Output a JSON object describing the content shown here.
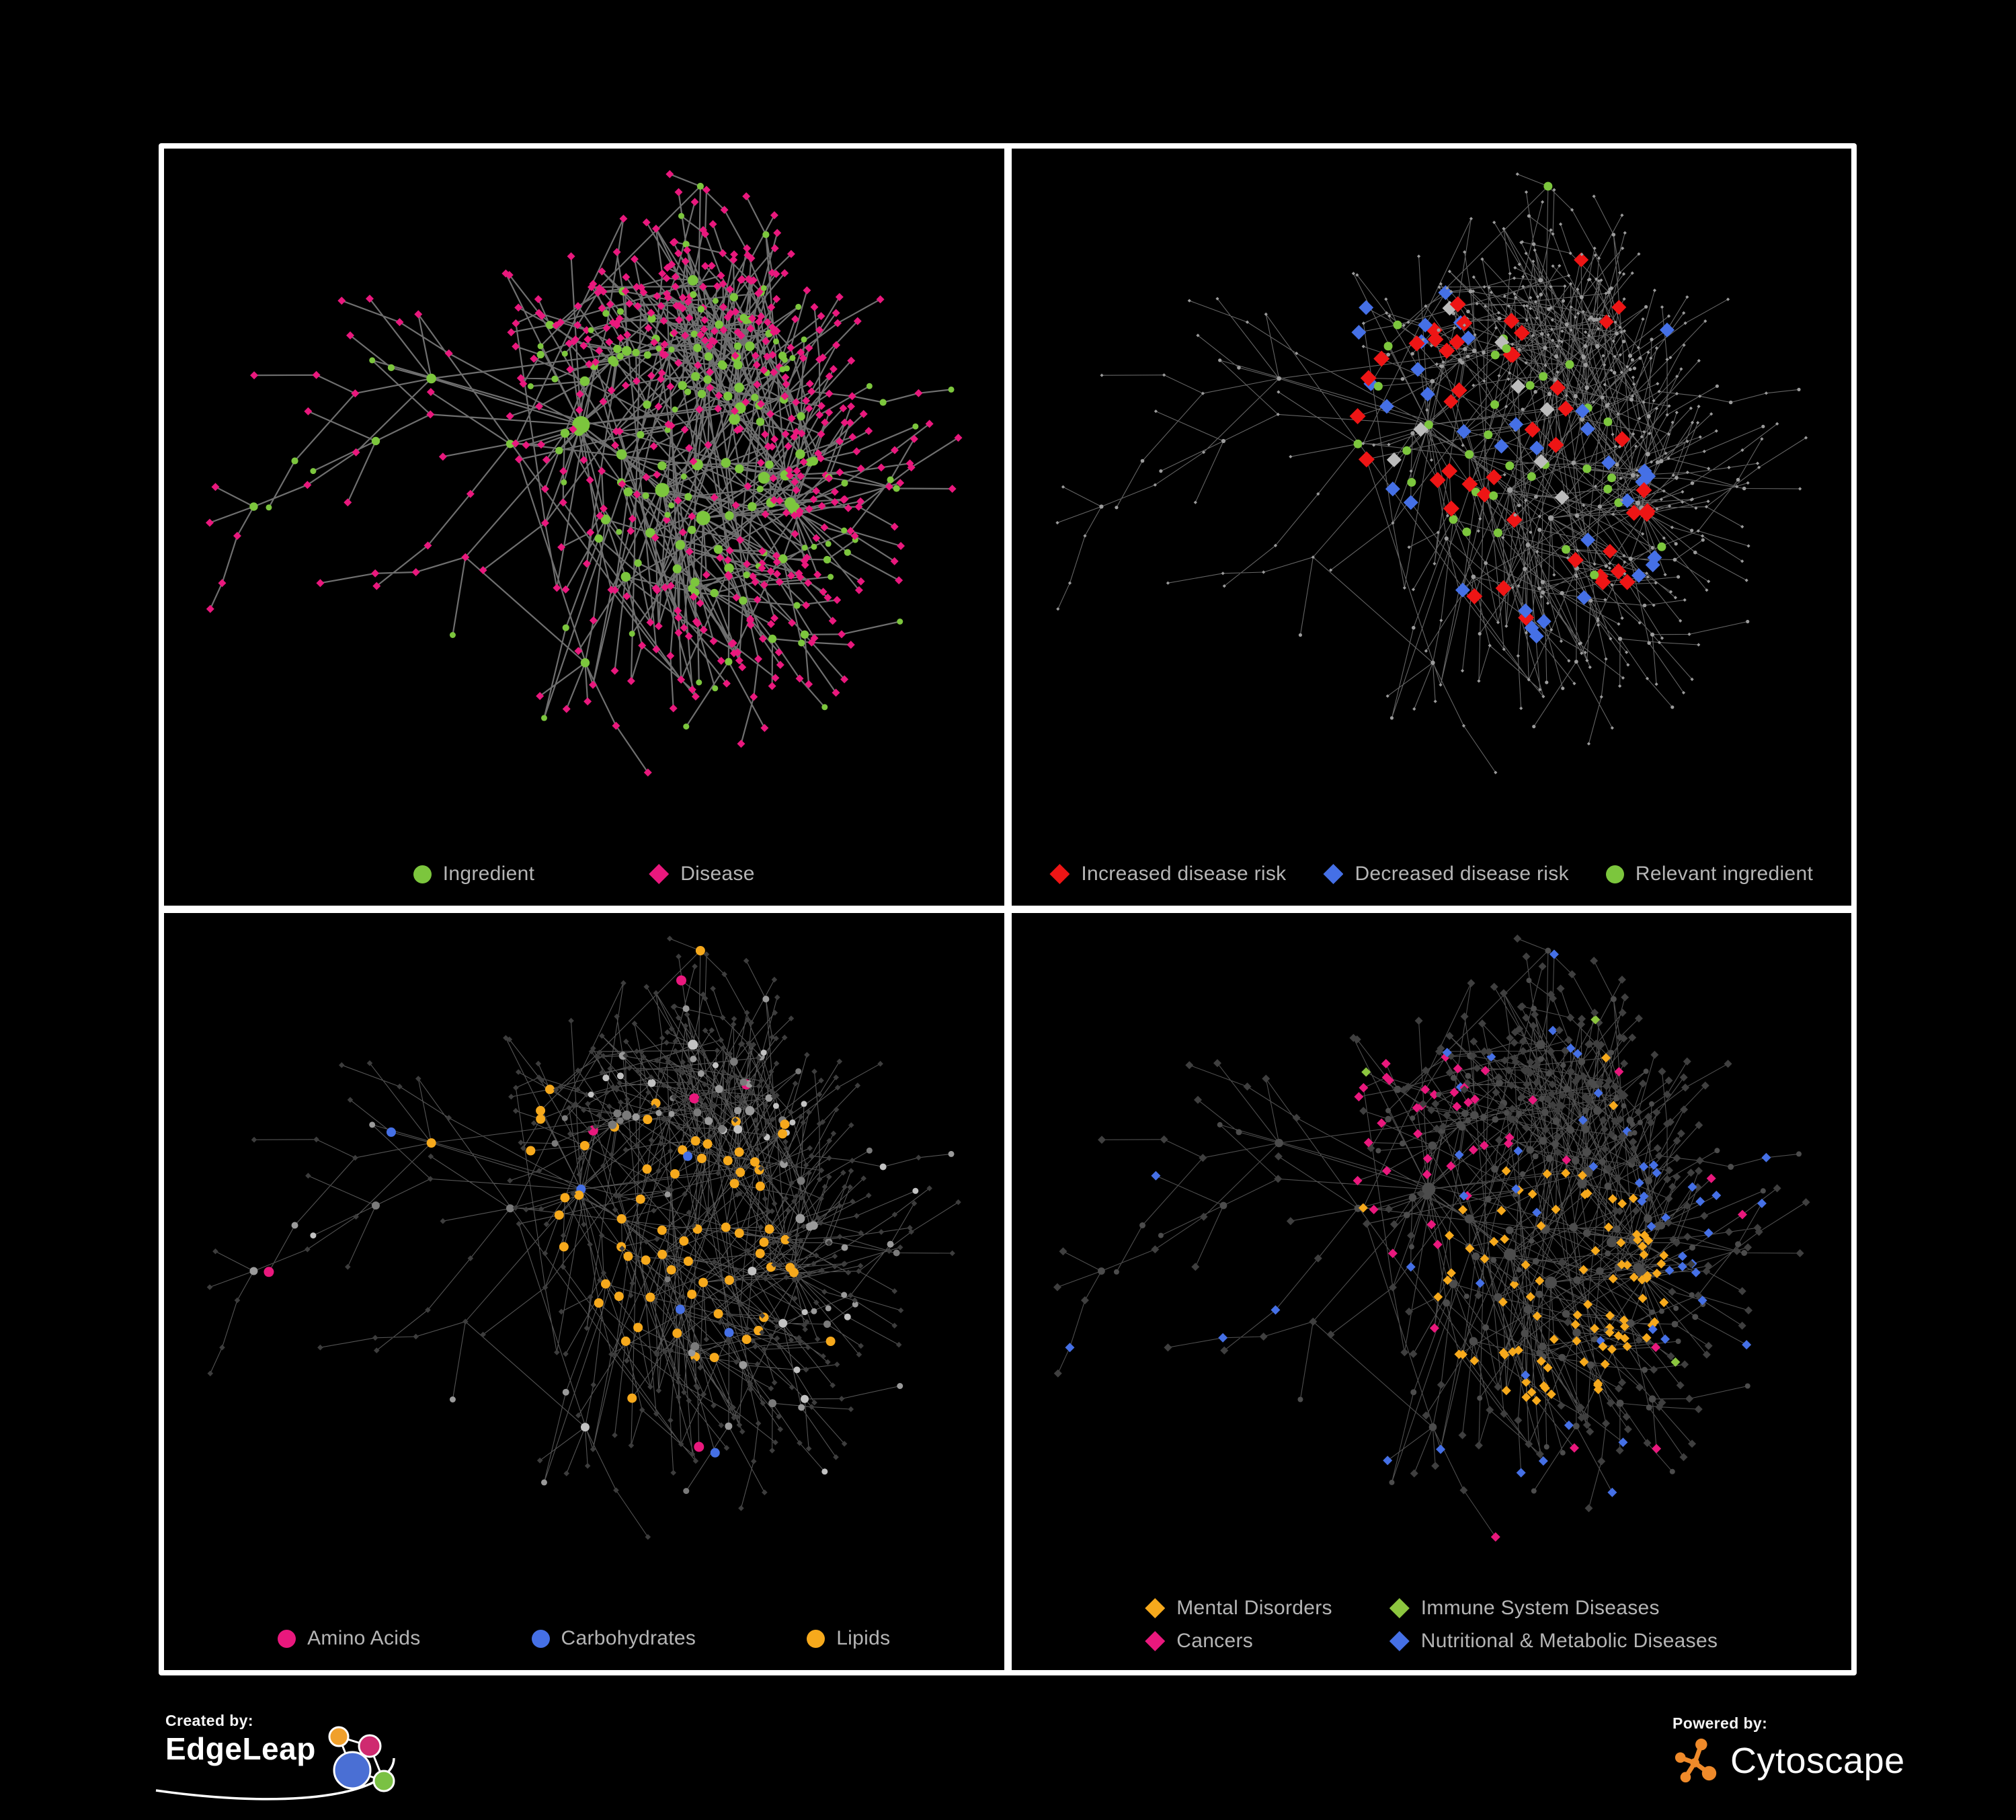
{
  "page": {
    "background": "#000000",
    "frame_color": "#ffffff",
    "legend_text_color": "#b5b5b5"
  },
  "network": {
    "seed": 7,
    "node_count": 640,
    "hub_bias": 1.45,
    "max_children": 28,
    "extra_edges": 85
  },
  "panels": [
    {
      "name": "ingredient-disease",
      "seed": 101,
      "legend": {
        "layout": "row",
        "items": [
          {
            "shape": "circle",
            "color": "#7cc63d",
            "label": "Ingredient"
          },
          {
            "shape": "diamond",
            "color": "#e9187d",
            "label": "Disease"
          }
        ]
      },
      "style": {
        "edge": {
          "color": "#757575",
          "width": 2.2,
          "opacity": 0.95
        },
        "ingredient": {
          "shape": "circle",
          "color": "#7cc63d",
          "r0": 4.5,
          "rk": 0.55,
          "rmax": 8.5
        },
        "disease": {
          "shape": "diamond",
          "color": "#e9187d",
          "s": 6
        }
      },
      "highlight_rules": []
    },
    {
      "name": "disease-risk",
      "seed": 202,
      "legend": {
        "layout": "row",
        "items": [
          {
            "shape": "diamond",
            "color": "#ee1515",
            "label": "Increased disease risk"
          },
          {
            "shape": "diamond",
            "color": "#4570e6",
            "label": "Decreased disease risk"
          },
          {
            "shape": "circle",
            "color": "#7cc63d",
            "label": "Relevant ingredient"
          }
        ]
      },
      "style": {
        "edge": {
          "color": "#8f8f8f",
          "width": 1.1,
          "opacity": 0.7
        },
        "ingredient": {
          "shape": "circle",
          "color": "#9c9c9c",
          "r0": 2.6,
          "rk": 0.15,
          "rmax": 2.4
        },
        "disease": {
          "shape": "diamond",
          "color": "#9c9c9c",
          "s": 2.6
        }
      },
      "highlight_rules": [
        {
          "target": "disease",
          "anchor": "hub0",
          "radius": 200,
          "prob": 0.3,
          "shape": "diamond",
          "color": "#ee1515",
          "size": 12
        },
        {
          "target": "disease",
          "anchor": "hub0",
          "radius": 200,
          "prob": 0.14,
          "shape": "diamond",
          "color": "#4570e6",
          "size": 11
        },
        {
          "target": "disease",
          "anchor": "hub0",
          "radius": 200,
          "prob": 0.1,
          "shape": "diamond",
          "color": "#bcbcbc",
          "size": 11
        },
        {
          "target": "disease",
          "anchor": "hub1",
          "radius": 170,
          "prob": 0.26,
          "shape": "diamond",
          "color": "#ee1515",
          "size": 12
        },
        {
          "target": "disease",
          "anchor": "hub1",
          "radius": 170,
          "prob": 0.2,
          "shape": "diamond",
          "color": "#4570e6",
          "size": 11
        },
        {
          "target": "disease",
          "anchor": "hub1",
          "radius": 170,
          "prob": 0.07,
          "shape": "diamond",
          "color": "#bcbcbc",
          "size": 11
        },
        {
          "target": "disease",
          "prob": 0.012,
          "shape": "diamond",
          "color": "#ee1515",
          "size": 11
        },
        {
          "target": "disease",
          "prob": 0.007,
          "shape": "diamond",
          "color": "#4570e6",
          "size": 11
        },
        {
          "target": "ingredient",
          "anchor": "hub0",
          "radius": 210,
          "prob": 0.32,
          "shape": "circle",
          "color": "#7cc63d",
          "size": 6.5
        },
        {
          "target": "ingredient",
          "anchor": "hub1",
          "radius": 180,
          "prob": 0.28,
          "shape": "circle",
          "color": "#7cc63d",
          "size": 6.5
        },
        {
          "target": "ingredient",
          "prob": 0.02,
          "shape": "circle",
          "color": "#7cc63d",
          "size": 6.5
        }
      ]
    },
    {
      "name": "nutrient-classes",
      "seed": 303,
      "legend": {
        "layout": "row",
        "items": [
          {
            "shape": "circle",
            "color": "#e9187d",
            "label": "Amino Acids"
          },
          {
            "shape": "circle",
            "color": "#4570e6",
            "label": "Carbohydrates"
          },
          {
            "shape": "circle",
            "color": "#f6a91c",
            "label": "Lipids"
          }
        ]
      },
      "style": {
        "edge": {
          "color": "#a8a8a8",
          "width": 1.1,
          "opacity": 0.5
        },
        "ingredient": {
          "shape": "circle",
          "palette": [
            "#c2c2c2",
            "#9a9a9a",
            "#7a7a7a"
          ],
          "r0": 4.5,
          "rk": 0.5,
          "rmax": 8
        },
        "disease": {
          "shape": "diamond",
          "color": "#3d3d3d",
          "s": 4.3
        }
      },
      "highlight_rules": [
        {
          "target": "ingredient",
          "anchor": "hub2",
          "radius": 200,
          "prob": 0.8,
          "shape": "circle",
          "color": "#f6a91c",
          "size": 7
        },
        {
          "target": "ingredient",
          "anchor": "hub2",
          "radius": 200,
          "prob": 0.55,
          "shape": "circle",
          "color": "#4570e6",
          "size": 7
        },
        {
          "target": "ingredient",
          "anchor": "hub0",
          "radius": 240,
          "prob": 0.2,
          "shape": "circle",
          "color": "#f6a91c",
          "size": 7
        },
        {
          "target": "ingredient",
          "prob": 0.07,
          "shape": "circle",
          "color": "#f6a91c",
          "size": 7
        },
        {
          "target": "ingredient",
          "prob": 0.02,
          "shape": "circle",
          "color": "#4570e6",
          "size": 7
        },
        {
          "target": "ingredient",
          "anchor": "center",
          "radius": 330,
          "outside": true,
          "prob": 0.12,
          "shape": "circle",
          "color": "#e9187d",
          "size": 7.5
        },
        {
          "target": "ingredient",
          "prob": 0.015,
          "shape": "circle",
          "color": "#e9187d",
          "size": 7.5
        }
      ]
    },
    {
      "name": "disease-classes",
      "seed": 404,
      "legend": {
        "layout": "grid2",
        "items": [
          {
            "shape": "diamond",
            "color": "#f6a91c",
            "label": "Mental Disorders"
          },
          {
            "shape": "diamond",
            "color": "#8cc63f",
            "label": "Immune System Diseases"
          },
          {
            "shape": "diamond",
            "color": "#e9187d",
            "label": "Cancers"
          },
          {
            "shape": "diamond",
            "color": "#4570e6",
            "label": "Nutritional & Metabolic Diseases"
          }
        ]
      },
      "style": {
        "edge": {
          "color": "#9b9b9b",
          "width": 1.1,
          "opacity": 0.5
        },
        "ingredient": {
          "shape": "circle",
          "color": "#4c4c4c",
          "r0": 4,
          "rk": 0.45,
          "rmax": 6
        },
        "disease": {
          "shape": "diamond",
          "color": "#3f3f3f",
          "s": 6
        }
      },
      "highlight_rules": [
        {
          "target": "disease",
          "anchor": "hub1",
          "radius": 180,
          "prob": 0.8,
          "shape": "diamond",
          "color": "#f6a91c",
          "size": 7
        },
        {
          "target": "disease",
          "anchor": "hub0",
          "radius": 210,
          "prob": 0.42,
          "shape": "diamond",
          "color": "#e9187d",
          "size": 7
        },
        {
          "target": "disease",
          "anchor": "hub2",
          "radius": 150,
          "prob": 0.55,
          "shape": "diamond",
          "color": "#4570e6",
          "size": 7
        },
        {
          "target": "disease",
          "anchor": "hub3",
          "radius": 150,
          "prob": 0.4,
          "shape": "diamond",
          "color": "#4570e6",
          "size": 7
        },
        {
          "target": "disease",
          "prob": 0.09,
          "shape": "diamond",
          "color": "#4570e6",
          "size": 7
        },
        {
          "target": "disease",
          "prob": 0.035,
          "shape": "diamond",
          "color": "#e9187d",
          "size": 7
        },
        {
          "target": "disease",
          "prob": 0.025,
          "shape": "diamond",
          "color": "#f6a91c",
          "size": 7
        },
        {
          "target": "disease",
          "prob": 0.016,
          "shape": "diamond",
          "color": "#8cc63f",
          "size": 7
        }
      ]
    }
  ],
  "footer": {
    "created_by": "Created by:",
    "edgeleap": "EdgeLeap",
    "powered_by": "Powered by:",
    "cytoscape": "Cytoscape",
    "edgeleap_logo_colors": {
      "orange": "#f0a02c",
      "magenta": "#cf2a70",
      "blue": "#4a6fd4",
      "green": "#7ac143"
    },
    "cytoscape_color": "#ef8a2a"
  }
}
